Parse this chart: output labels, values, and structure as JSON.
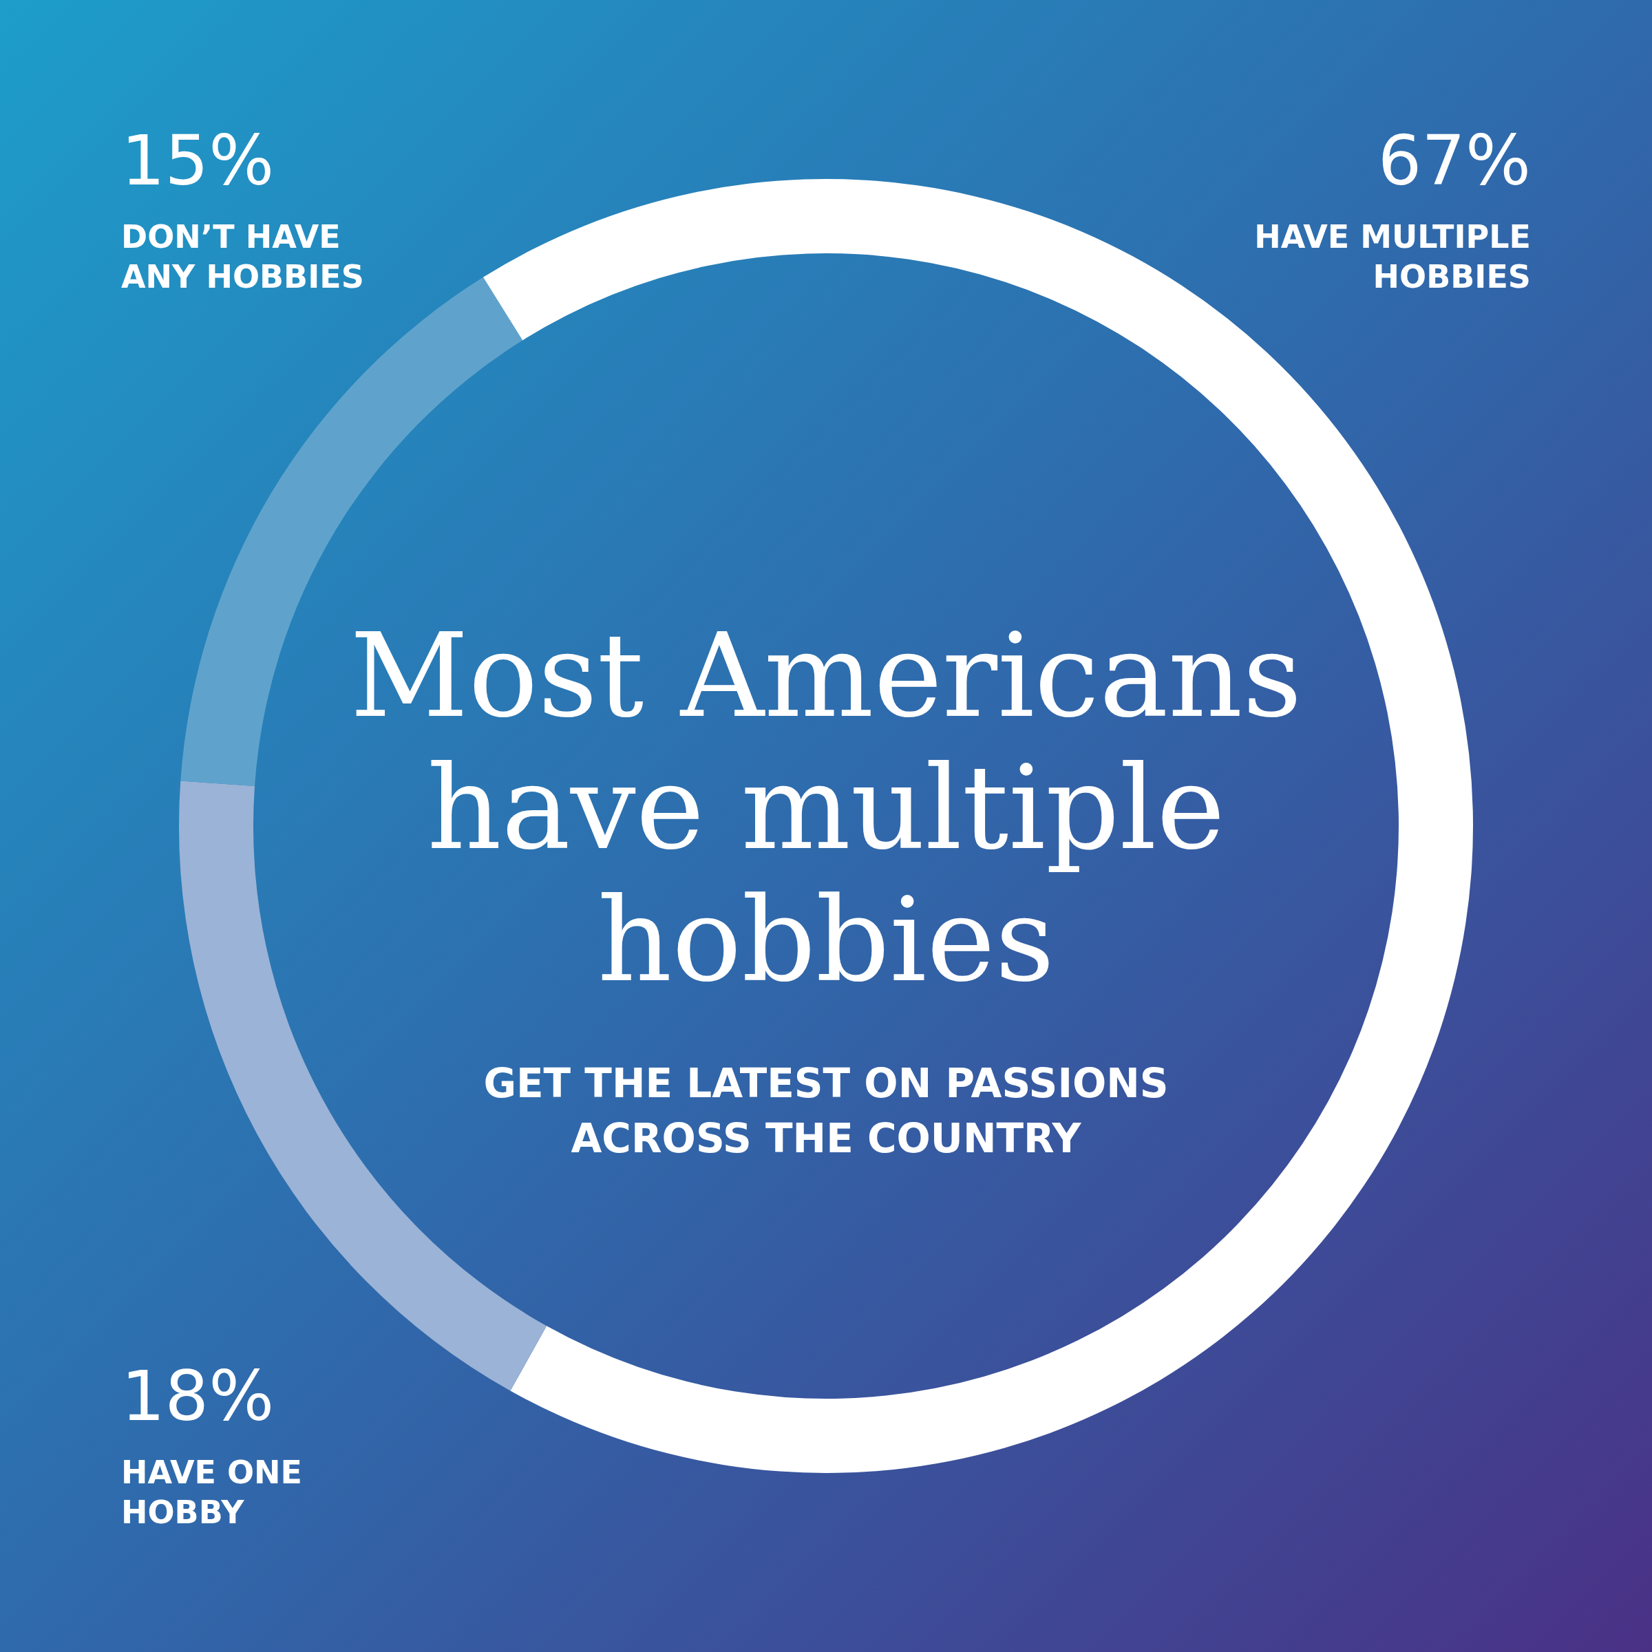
{
  "chart_data": {
    "type": "donut",
    "title": "Most Americans have multiple hobbies",
    "subtitle": "GET THE LATEST ON PASSIONS ACROSS THE COUNTRY",
    "categories": [
      "HAVE MULTIPLE HOBBIES",
      "HAVE ONE HOBBY",
      "DON’T HAVE ANY HOBBIES"
    ],
    "values": [
      67,
      18,
      15
    ],
    "colors": [
      "#ffffff",
      "#9bb3d6",
      "#5fa3cd"
    ],
    "value_labels": [
      "67%",
      "18%",
      "15%"
    ]
  }
}
